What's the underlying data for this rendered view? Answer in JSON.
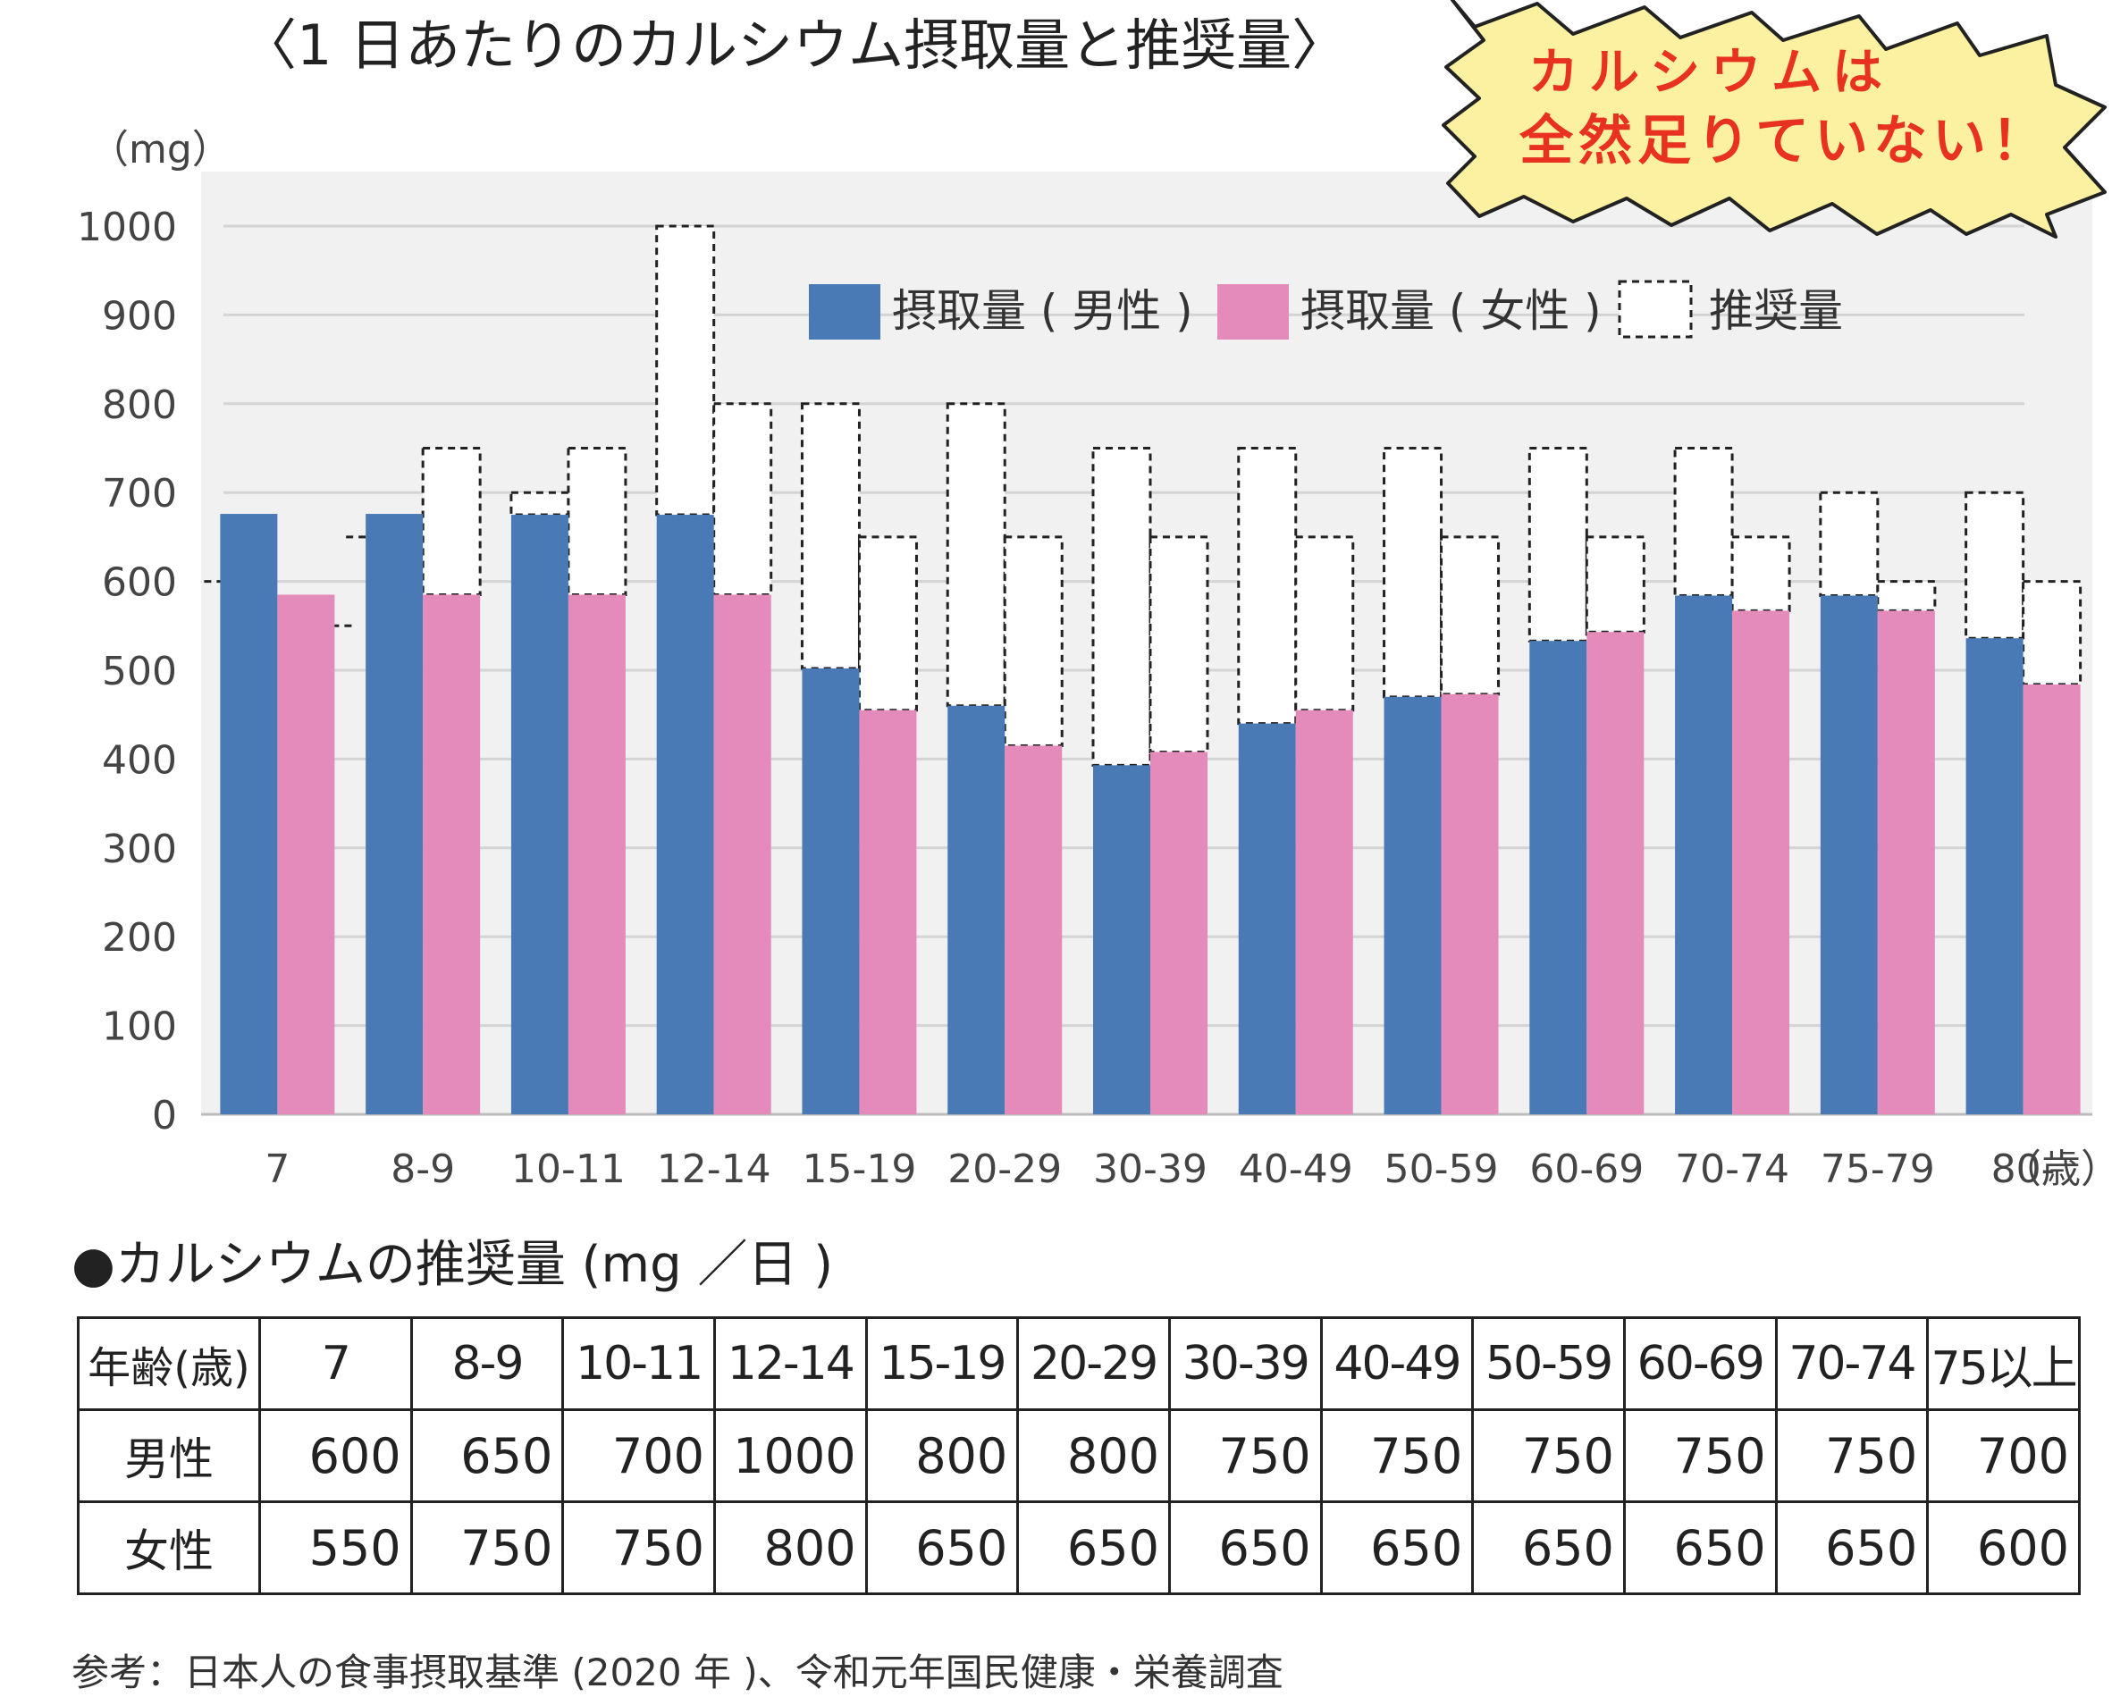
{
  "title": "〈1 日あたりのカルシウム摂取量と推奨量〉",
  "callout": {
    "line1": "カルシウムは",
    "line2": "全然足りていない！"
  },
  "chart_data": {
    "type": "bar",
    "unit_label": "（mg）",
    "x_unit_label": "（歳）",
    "categories": [
      "7",
      "8-9",
      "10-11",
      "12-14",
      "15-19",
      "20-29",
      "30-39",
      "40-49",
      "50-59",
      "60-69",
      "70-74",
      "75-79",
      "80-"
    ],
    "ylim": [
      0,
      1000
    ],
    "yticks": [
      0,
      100,
      200,
      300,
      400,
      500,
      600,
      700,
      800,
      900,
      1000
    ],
    "grid": true,
    "legend_position": "top-right",
    "series": [
      {
        "name": "摂取量 ( 男性 )",
        "color": "#4a7ab5",
        "values": [
          676,
          676,
          675,
          675,
          502,
          460,
          393,
          440,
          470,
          533,
          584,
          584,
          536
        ]
      },
      {
        "name": "摂取量 ( 女性 )",
        "color": "#e58bbb",
        "values": [
          585,
          585,
          585,
          585,
          455,
          415,
          408,
          455,
          473,
          543,
          567,
          567,
          484
        ]
      }
    ],
    "recommended": {
      "name": "推奨量",
      "male": [
        600,
        650,
        700,
        1000,
        800,
        800,
        750,
        750,
        750,
        750,
        750,
        700,
        700
      ],
      "female": [
        550,
        750,
        750,
        800,
        650,
        650,
        650,
        650,
        650,
        650,
        650,
        600,
        600
      ]
    }
  },
  "table": {
    "title": "●カルシウムの推奨量 (mg ／日 )",
    "header": [
      "年齢(歳)",
      "7",
      "8-9",
      "10-11",
      "12-14",
      "15-19",
      "20-29",
      "30-39",
      "40-49",
      "50-59",
      "60-69",
      "70-74",
      "75以上"
    ],
    "rows": [
      [
        "男性",
        "600",
        "650",
        "700",
        "1000",
        "800",
        "800",
        "750",
        "750",
        "750",
        "750",
        "750",
        "700"
      ],
      [
        "女性",
        "550",
        "750",
        "750",
        "800",
        "650",
        "650",
        "650",
        "650",
        "650",
        "650",
        "650",
        "600"
      ]
    ]
  },
  "source": "参考：日本人の食事摂取基準 (2020 年 )、令和元年国民健康・栄養調査"
}
